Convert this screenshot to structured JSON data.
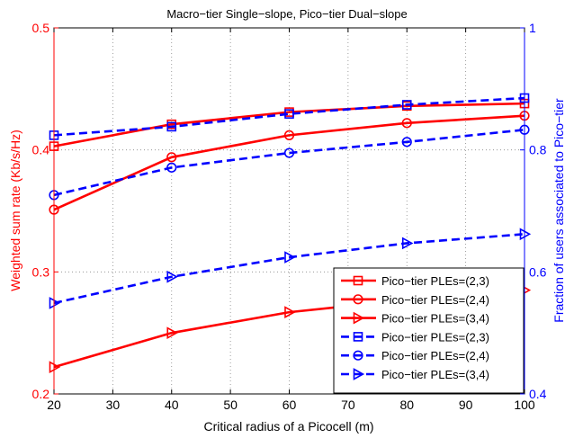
{
  "chart_data": {
    "type": "line",
    "title": "Macro−tier Single−slope, Pico−tier Dual−slope",
    "xlabel": "Critical radius of a Picocell (m)",
    "ylabel_left": "Weighted sum rate (Kb/s/Hz)",
    "ylabel_right": "Fraction of users associated to Pico−tier",
    "xlim": [
      20,
      100
    ],
    "ylim_left": [
      0.2,
      0.5
    ],
    "ylim_right": [
      0.4,
      1.0
    ],
    "xticks": [
      "20",
      "30",
      "40",
      "50",
      "60",
      "70",
      "80",
      "90",
      "100"
    ],
    "yticks_left": [
      "0.2",
      "0.3",
      "0.4",
      "0.5"
    ],
    "yticks_right": [
      "0.4",
      "0.6",
      "0.8",
      "1"
    ],
    "grid": true,
    "legend_position": "lower-right",
    "colors": {
      "left_axis": "#ff0000",
      "right_axis": "#0000ff",
      "frame": "#000000",
      "grid": "#888888"
    },
    "x": [
      20,
      40,
      60,
      80,
      100
    ],
    "series": [
      {
        "name": "Pico−tier PLEs=(2,3)",
        "axis": "left",
        "color": "#ff0000",
        "dash": "solid",
        "marker": "square",
        "values": [
          0.403,
          0.421,
          0.431,
          0.436,
          0.438
        ]
      },
      {
        "name": "Pico−tier PLEs=(2,4)",
        "axis": "left",
        "color": "#ff0000",
        "dash": "solid",
        "marker": "circle",
        "values": [
          0.351,
          0.394,
          0.412,
          0.422,
          0.428
        ]
      },
      {
        "name": "Pico−tier PLEs=(3,4)",
        "axis": "left",
        "color": "#ff0000",
        "dash": "solid",
        "marker": "triangle-right",
        "values": [
          0.222,
          0.25,
          0.267,
          0.277,
          0.285
        ]
      },
      {
        "name": "Pico−tier PLEs=(2,3)",
        "axis": "right",
        "color": "#0000ff",
        "dash": "dashed",
        "marker": "square",
        "values": [
          0.824,
          0.838,
          0.859,
          0.874,
          0.885
        ]
      },
      {
        "name": "Pico−tier PLEs=(2,4)",
        "axis": "right",
        "color": "#0000ff",
        "dash": "dashed",
        "marker": "circle",
        "values": [
          0.726,
          0.771,
          0.795,
          0.813,
          0.833
        ]
      },
      {
        "name": "Pico−tier PLEs=(3,4)",
        "axis": "right",
        "color": "#0000ff",
        "dash": "dashed",
        "marker": "triangle-right",
        "values": [
          0.549,
          0.592,
          0.624,
          0.647,
          0.662
        ]
      }
    ]
  }
}
